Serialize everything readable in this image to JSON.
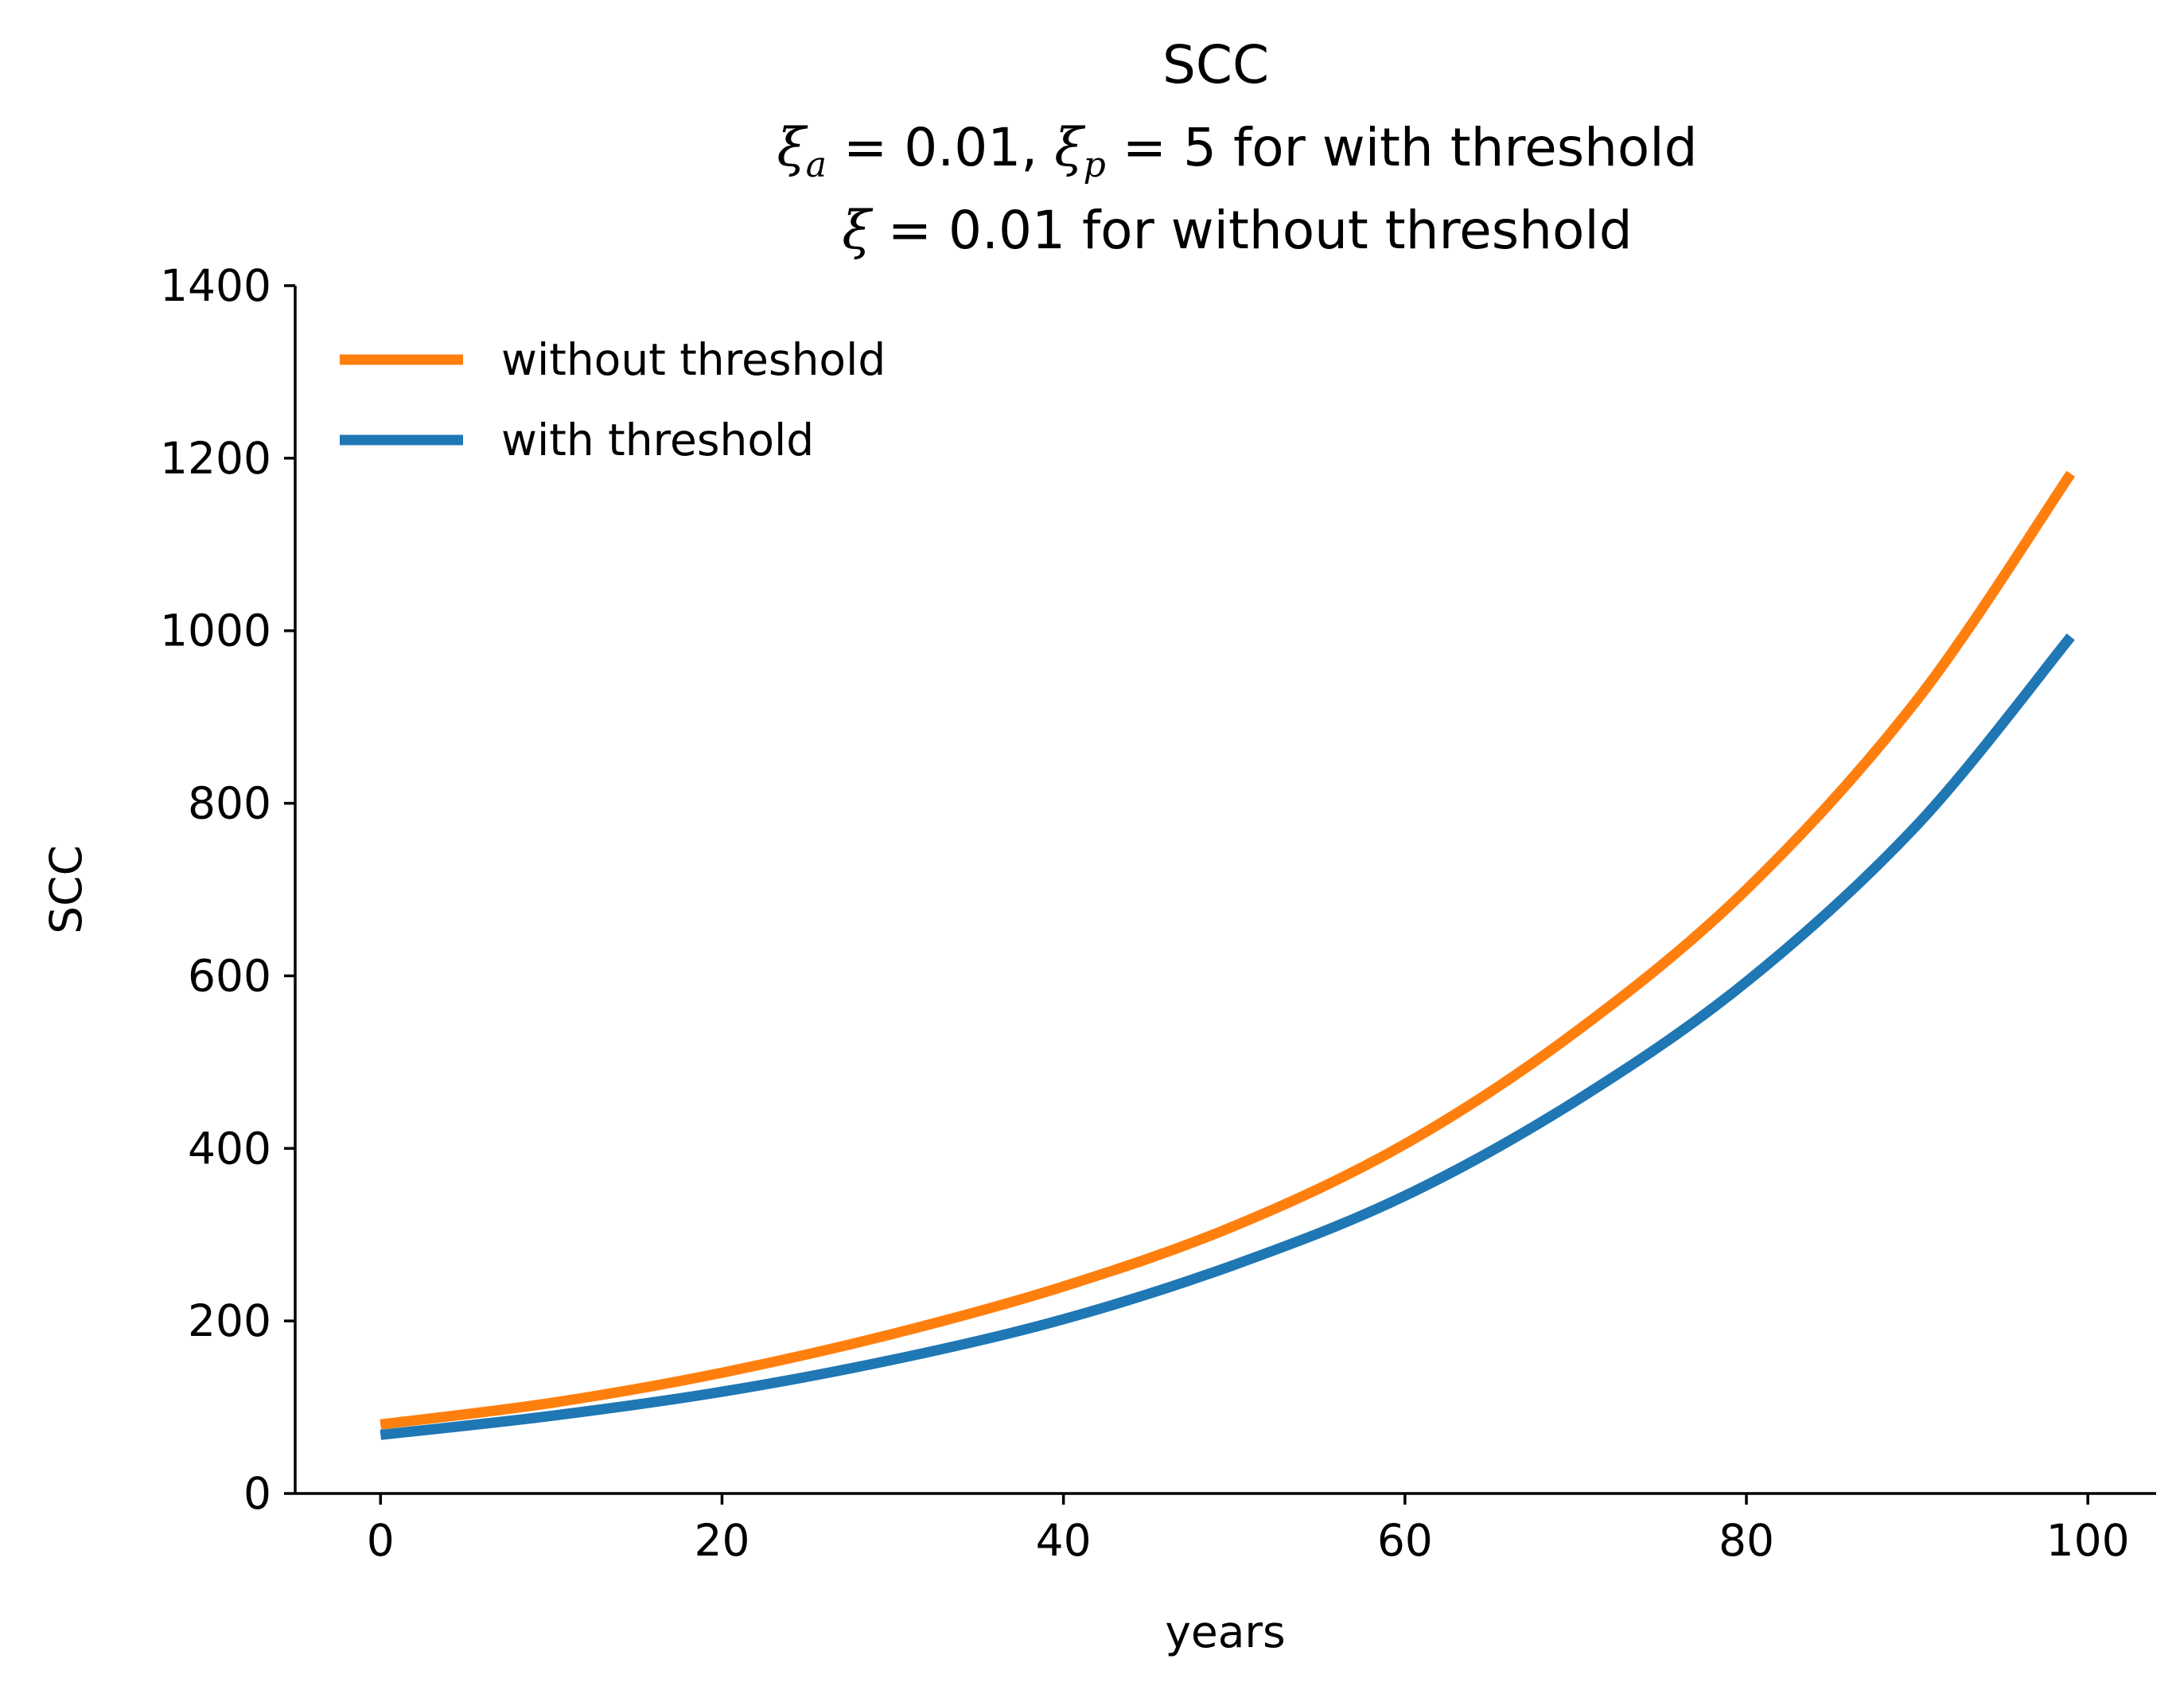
{
  "chart_data": {
    "type": "line",
    "title": {
      "line1": "SCC",
      "line2": {
        "xi": "ξ",
        "sub_a": "a",
        "eq1": " = 0.01, ",
        "sub_p": "p",
        "eq2": " = 5",
        "text": " for with threshold"
      },
      "line3": {
        "xi": "ξ",
        "eq": " = 0.01",
        "text": " for without threshold"
      }
    },
    "xlabel": "years",
    "ylabel": "SCC",
    "xlim": [
      -5,
      104
    ],
    "ylim": [
      0,
      1400
    ],
    "xticks": [
      0,
      20,
      40,
      60,
      80,
      100
    ],
    "yticks": [
      0,
      200,
      400,
      600,
      800,
      1000,
      1200,
      1400
    ],
    "grid": false,
    "legend_position": "upper-left",
    "series": [
      {
        "name": "without threshold",
        "color": "#ff7f0e",
        "x": [
          0,
          10,
          20,
          30,
          40,
          50,
          60,
          70,
          80,
          90,
          99
        ],
        "y": [
          80,
          105,
          140,
          185,
          240,
          310,
          405,
          535,
          700,
          920,
          1182
        ]
      },
      {
        "name": "with threshold",
        "color": "#1f77b4",
        "x": [
          0,
          10,
          20,
          30,
          40,
          50,
          60,
          70,
          80,
          90,
          99
        ],
        "y": [
          68,
          90,
          118,
          155,
          202,
          265,
          345,
          455,
          593,
          775,
          993
        ]
      }
    ]
  }
}
